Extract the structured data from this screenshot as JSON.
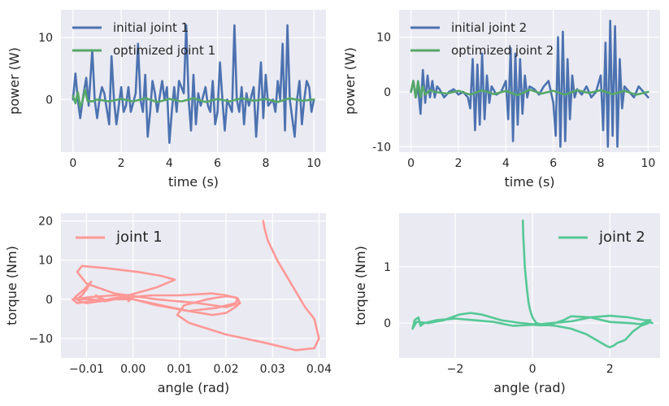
{
  "chart_data": [
    {
      "type": "line",
      "xlabel": "time (s)",
      "ylabel": "power (W)",
      "xlim": [
        -0.5,
        10.5
      ],
      "ylim": [
        -8.5,
        14.5
      ],
      "xticks": [
        0,
        2,
        4,
        6,
        8,
        10
      ],
      "yticks": [
        0,
        10
      ],
      "legend": "upper-left",
      "series": [
        {
          "name": "initial joint 1",
          "color": "#4c72b0",
          "x": [
            0,
            0.1,
            0.2,
            0.3,
            0.4,
            0.55,
            0.65,
            0.8,
            0.9,
            1.0,
            1.1,
            1.2,
            1.3,
            1.5,
            1.6,
            1.7,
            1.8,
            2.0,
            2.1,
            2.2,
            2.3,
            2.4,
            2.6,
            2.7,
            2.8,
            2.9,
            3.0,
            3.1,
            3.2,
            3.3,
            3.4,
            3.5,
            3.7,
            3.8,
            3.9,
            4.0,
            4.1,
            4.2,
            4.3,
            4.4,
            4.6,
            4.7,
            4.8,
            4.9,
            5.0,
            5.1,
            5.2,
            5.3,
            5.5,
            5.6,
            5.7,
            5.8,
            5.9,
            6.0,
            6.1,
            6.2,
            6.3,
            6.4,
            6.6,
            6.7,
            6.8,
            6.9,
            7.0,
            7.1,
            7.2,
            7.3,
            7.5,
            7.6,
            7.7,
            7.8,
            7.9,
            8.0,
            8.1,
            8.3,
            8.4,
            8.5,
            8.6,
            8.7,
            8.8,
            8.9,
            9.0,
            9.2,
            9.3,
            9.4,
            9.5,
            9.6,
            9.7,
            9.8,
            9.9,
            10.0
          ],
          "y": [
            0,
            4.2,
            0,
            -3,
            0,
            3.5,
            -1,
            8,
            0,
            -3,
            0,
            2,
            1,
            -4,
            7,
            0,
            -4,
            2,
            -2,
            -1,
            2,
            -2,
            1,
            9,
            0,
            -2,
            4,
            -6,
            -2,
            3,
            1,
            -2,
            3,
            0,
            2,
            -7,
            -2,
            2,
            -2,
            3,
            1,
            12,
            0,
            -5,
            4,
            -4,
            1,
            -1,
            2,
            -1,
            -2,
            3,
            -4,
            -2,
            6,
            0,
            -5,
            0,
            -2,
            12,
            0,
            -2,
            2,
            -4,
            1,
            -1,
            2,
            -6,
            0,
            6,
            -3,
            4,
            -1,
            0,
            -2,
            3,
            0,
            9,
            -5,
            12,
            0,
            -6,
            0,
            3,
            -4,
            0,
            3,
            2,
            -2,
            0
          ]
        },
        {
          "name": "optimized joint 1",
          "color": "#55a868",
          "x": [
            0,
            0.1,
            0.2,
            0.3,
            0.4,
            0.5,
            0.6,
            0.8,
            1.0,
            1.5,
            2.0,
            2.5,
            3.0,
            3.5,
            4.0,
            4.5,
            5.0,
            5.5,
            6.0,
            6.5,
            7.0,
            7.5,
            8.0,
            8.5,
            9.0,
            9.5,
            10.0
          ],
          "y": [
            0.6,
            -0.6,
            1.2,
            -1.2,
            -0.2,
            1.6,
            -0.2,
            -0.3,
            0,
            -0.3,
            0.1,
            -0.3,
            0.2,
            -0.4,
            0.1,
            -0.3,
            0.2,
            -0.4,
            0.1,
            -0.3,
            0.2,
            -0.2,
            0.1,
            -0.4,
            0.2,
            -0.2,
            0
          ]
        }
      ]
    },
    {
      "type": "line",
      "xlabel": "time (s)",
      "ylabel": "power (W)",
      "xlim": [
        -0.5,
        10.5
      ],
      "ylim": [
        -11,
        15
      ],
      "xticks": [
        0,
        2,
        4,
        6,
        8,
        10
      ],
      "yticks": [
        -10,
        0,
        10
      ],
      "legend": "upper-left",
      "series": [
        {
          "name": "initial joint 2",
          "color": "#4c72b0",
          "x": [
            0,
            0.1,
            0.2,
            0.3,
            0.4,
            0.5,
            0.6,
            0.7,
            0.8,
            0.9,
            1.0,
            1.1,
            1.2,
            1.4,
            1.6,
            1.8,
            2.0,
            2.2,
            2.4,
            2.5,
            2.6,
            2.7,
            2.8,
            2.9,
            3.0,
            3.1,
            3.2,
            3.3,
            3.4,
            3.6,
            3.8,
            4.0,
            4.1,
            4.2,
            4.3,
            4.4,
            4.5,
            4.6,
            4.7,
            4.8,
            4.9,
            5.0,
            5.2,
            5.4,
            5.6,
            5.8,
            6.0,
            6.1,
            6.2,
            6.3,
            6.4,
            6.5,
            6.6,
            6.7,
            6.8,
            6.9,
            7.0,
            7.2,
            7.4,
            7.6,
            7.8,
            8.0,
            8.1,
            8.2,
            8.3,
            8.4,
            8.5,
            8.6,
            8.7,
            8.8,
            8.9,
            9.0,
            9.2,
            9.4,
            9.6,
            9.8,
            10.0
          ],
          "y": [
            0,
            2,
            -1,
            1,
            -4,
            4,
            -2,
            3,
            -1,
            2,
            -1,
            1,
            0.5,
            -1,
            0,
            0.5,
            -0.5,
            0,
            -1,
            -3,
            6,
            -7,
            5,
            -6,
            7,
            -5,
            3,
            -2,
            1,
            -0.5,
            0,
            2,
            -5,
            8,
            -9,
            7,
            -6,
            6,
            -4,
            3,
            -1,
            1,
            0.5,
            -0.5,
            1,
            2,
            -2,
            -8,
            10,
            -10,
            11,
            -9,
            6,
            -5,
            3,
            -1,
            0.5,
            -0.5,
            1,
            -1,
            0,
            3,
            -7,
            9,
            -10,
            13,
            -8,
            12,
            -10,
            6,
            -3,
            1,
            0,
            -1,
            1,
            0,
            -1
          ]
        },
        {
          "name": "optimized joint 2",
          "color": "#55a868",
          "x": [
            0,
            0.1,
            0.2,
            0.3,
            0.4,
            0.5,
            0.6,
            0.8,
            1.0,
            1.5,
            2.0,
            2.5,
            3.0,
            3.5,
            4.0,
            4.5,
            5.0,
            5.5,
            6.0,
            6.5,
            7.0,
            7.5,
            8.0,
            8.5,
            9.0,
            9.5,
            10.0
          ],
          "y": [
            0,
            2,
            -1,
            2,
            -1,
            1,
            -0.5,
            0.3,
            0,
            -0.3,
            0.2,
            -0.5,
            0.3,
            -0.4,
            0.2,
            -0.6,
            0.4,
            -0.3,
            0.2,
            -0.5,
            0.3,
            -0.2,
            0.3,
            -0.4,
            0.2,
            -0.5,
            0
          ]
        }
      ]
    },
    {
      "type": "line",
      "xlabel": "angle (rad)",
      "ylabel": "torque (Nm)",
      "xlim": [
        -0.0155,
        0.0415
      ],
      "ylim": [
        -15,
        22
      ],
      "xticks": [
        -0.01,
        0.0,
        0.01,
        0.02,
        0.03,
        0.04
      ],
      "xticklabels": [
        "−0.01",
        "0.00",
        "0.01",
        "0.02",
        "0.03",
        "0.04"
      ],
      "yticks": [
        -10,
        0,
        10,
        20
      ],
      "yticklabels": [
        "−10",
        "0",
        "10",
        "20"
      ],
      "legend": "upper-left",
      "series": [
        {
          "name": "joint 1",
          "color": "#ff9896",
          "x": [
            0.028,
            0.0283,
            0.029,
            0.031,
            0.034,
            0.037,
            0.039,
            0.04,
            0.039,
            0.035,
            0.028,
            0.02,
            0.012,
            0.0095,
            0.011,
            0.016,
            0.02,
            0.022,
            0.023,
            0.02,
            0.014,
            0.005,
            -0.004,
            -0.01,
            -0.012,
            -0.011,
            -0.006,
            0.001,
            0.006,
            0.009,
            0.005,
            -0.001,
            -0.006,
            -0.008,
            -0.007,
            -0.009,
            -0.012,
            -0.013,
            -0.011,
            -0.009,
            -0.004,
            0.0,
            -0.001,
            -0.0005,
            0.0,
            0.002,
            0.006,
            0.012,
            0.017,
            0.02,
            0.022,
            0.023,
            0.0225,
            0.02,
            0.017,
            0.01,
            0.004,
            -0.001,
            -0.004,
            -0.007,
            -0.01,
            -0.0115,
            -0.012,
            -0.011,
            -0.01,
            -0.009,
            -0.0105,
            -0.0125,
            -0.0115,
            -0.009,
            -0.006,
            -0.004,
            0.0,
            0.005,
            0.012,
            0.018,
            0.022,
            0.0225
          ],
          "y": [
            20,
            18,
            15,
            10,
            4,
            -2,
            -5,
            -10,
            -12.5,
            -13,
            -11,
            -9,
            -6,
            -4,
            -1.5,
            0,
            0.8,
            0.5,
            -1,
            -2,
            -1,
            0,
            1.5,
            4,
            7,
            8.5,
            8,
            7,
            6,
            5,
            3,
            1,
            -0.2,
            1,
            0,
            -0.5,
            -1,
            0,
            0.3,
            0.6,
            1,
            0.5,
            -0.5,
            0.2,
            0,
            -0.5,
            -1.5,
            -3,
            -4,
            -3.5,
            -2,
            -1,
            0.3,
            1,
            1.5,
            1,
            1,
            0.5,
            0,
            -0.5,
            -1,
            -0.5,
            0,
            1,
            2.5,
            4.5,
            2.5,
            0.5,
            0,
            0,
            -0.5,
            0,
            0,
            -1.5,
            -3,
            -2.2,
            -1,
            0
          ]
        }
      ]
    },
    {
      "type": "line",
      "xlabel": "angle (rad)",
      "ylabel": "torque (Nm)",
      "xlim": [
        -3.45,
        3.3
      ],
      "ylim": [
        -0.62,
        1.95
      ],
      "xticks": [
        -2,
        0,
        2
      ],
      "xticklabels": [
        "−2",
        "0",
        "2"
      ],
      "yticks": [
        0,
        1
      ],
      "legend": "upper-right",
      "series": [
        {
          "name": "joint 2",
          "color": "#55c896",
          "x": [
            -0.25,
            -0.24,
            -0.22,
            -0.2,
            -0.15,
            -0.1,
            -0.05,
            0.0,
            0.05,
            0.1,
            0.2,
            0.3,
            0.6,
            1.0,
            1.4,
            1.7,
            1.9,
            2.0,
            2.1,
            2.2,
            2.4,
            2.6,
            2.8,
            3.0,
            3.05,
            2.9,
            2.5,
            2.0,
            1.5,
            1.0,
            0.5,
            0.2,
            0.0,
            -0.3,
            -0.8,
            -1.3,
            -1.6,
            -1.9,
            -2.3,
            -2.7,
            -3.0,
            -3.1,
            -3.05,
            -2.95,
            -2.9,
            -2.8,
            -2.5,
            -2.0,
            -1.5,
            -1.0,
            -0.5,
            0.0,
            0.2,
            0.5,
            0.8,
            1.0,
            1.5,
            2.0,
            2.5,
            2.8,
            3.0,
            3.1
          ],
          "y": [
            1.82,
            1.55,
            1.3,
            1.0,
            0.65,
            0.35,
            0.2,
            0.1,
            0.05,
            0.0,
            -0.02,
            -0.03,
            -0.05,
            -0.1,
            -0.2,
            -0.32,
            -0.4,
            -0.43,
            -0.4,
            -0.35,
            -0.3,
            -0.15,
            -0.05,
            0.0,
            0.05,
            0.05,
            0.1,
            0.13,
            0.1,
            0.03,
            0.0,
            -0.02,
            -0.02,
            0.0,
            0.05,
            0.15,
            0.18,
            0.15,
            0.05,
            0.0,
            0.02,
            -0.1,
            0.05,
            0.1,
            -0.05,
            0.0,
            0.05,
            0.08,
            0.05,
            0.02,
            -0.05,
            -0.03,
            -0.04,
            -0.02,
            0.05,
            0.12,
            0.1,
            0.02,
            0.0,
            -0.02,
            0.03,
            0.0
          ]
        }
      ]
    }
  ]
}
